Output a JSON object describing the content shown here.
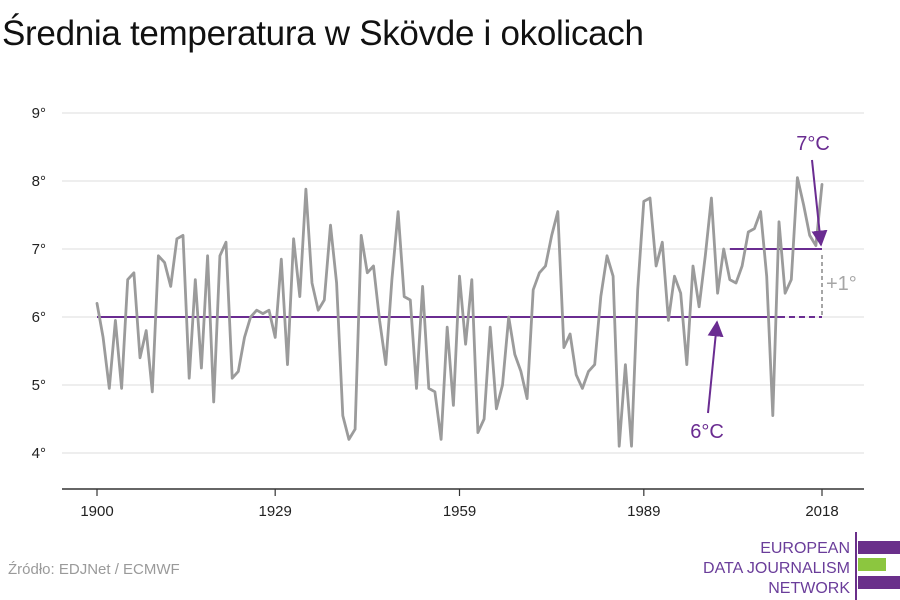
{
  "title": "Średnia temperatura w Skövde i okolicach",
  "source": "Źródło: EDJNet / ECMWF",
  "logo": {
    "lines": [
      "EUROPEAN",
      "DATA JOURNALISM",
      "NETWORK"
    ]
  },
  "colors": {
    "series": "#9b9b9b",
    "reference": "#6a2c91",
    "annotation_gray": "#a6a6a6",
    "grid": "#dcdcdc"
  },
  "chart_data": {
    "type": "line",
    "title": "Średnia temperatura w Skövde i okolicach",
    "xlabel": "",
    "ylabel": "",
    "xlim": [
      1900,
      2018
    ],
    "ylim": [
      4,
      9
    ],
    "x_ticks": [
      1900,
      1929,
      1959,
      1989,
      2018
    ],
    "x_tick_labels": [
      "1900",
      "1929",
      "1959",
      "1989",
      "2018"
    ],
    "y_ticks": [
      4,
      5,
      6,
      7,
      8,
      9
    ],
    "y_tick_labels": [
      "4°",
      "5°",
      "6°",
      "7°",
      "8°",
      "9°"
    ],
    "grid": true,
    "series": [
      {
        "x": [
          1900,
          1901,
          1902,
          1903,
          1904,
          1905,
          1906,
          1907,
          1908,
          1909,
          1910,
          1911,
          1912,
          1913,
          1914,
          1915,
          1916,
          1917,
          1918,
          1919,
          1920,
          1921,
          1922,
          1923,
          1924,
          1925,
          1926,
          1927,
          1928,
          1929,
          1930,
          1931,
          1932,
          1933,
          1934,
          1935,
          1936,
          1937,
          1938,
          1939,
          1940,
          1941,
          1942,
          1943,
          1944,
          1945,
          1946,
          1947,
          1948,
          1949,
          1950,
          1951,
          1952,
          1953,
          1954,
          1955,
          1956,
          1957,
          1958,
          1959,
          1960,
          1961,
          1962,
          1963,
          1964,
          1965,
          1966,
          1967,
          1968,
          1969,
          1970,
          1971,
          1972,
          1973,
          1974,
          1975,
          1976,
          1977,
          1978,
          1979,
          1980,
          1981,
          1982,
          1983,
          1984,
          1985,
          1986,
          1987,
          1988,
          1989,
          1990,
          1991,
          1992,
          1993,
          1994,
          1995,
          1996,
          1997,
          1998,
          1999,
          2000,
          2001,
          2002,
          2003,
          2004,
          2005,
          2006,
          2007,
          2008,
          2009,
          2010,
          2011,
          2012,
          2013,
          2014,
          2015,
          2016,
          2017,
          2018
        ],
        "values": [
          6.2,
          5.7,
          4.95,
          5.95,
          4.95,
          6.55,
          6.65,
          5.4,
          5.8,
          4.9,
          6.9,
          6.8,
          6.45,
          7.15,
          7.2,
          5.1,
          6.55,
          5.25,
          6.9,
          4.75,
          6.9,
          7.1,
          5.1,
          5.2,
          5.7,
          6.0,
          6.1,
          6.05,
          6.1,
          5.7,
          6.85,
          5.3,
          7.15,
          6.3,
          7.88,
          6.5,
          6.1,
          6.25,
          7.35,
          6.5,
          4.55,
          4.2,
          4.35,
          7.2,
          6.65,
          6.75,
          5.95,
          5.3,
          6.55,
          7.55,
          6.3,
          6.25,
          4.95,
          6.45,
          4.95,
          4.9,
          4.2,
          5.85,
          4.7,
          6.6,
          5.6,
          6.55,
          4.3,
          4.5,
          5.85,
          4.65,
          5.0,
          6.0,
          5.45,
          5.2,
          4.8,
          6.4,
          6.65,
          6.75,
          7.2,
          7.55,
          5.55,
          5.75,
          5.15,
          4.95,
          5.2,
          5.3,
          6.3,
          6.9,
          6.6,
          4.1,
          5.3,
          4.1,
          6.4,
          7.7,
          7.75,
          6.75,
          7.1,
          5.95,
          6.6,
          6.35,
          5.3,
          6.75,
          6.15,
          6.9,
          7.75,
          6.35,
          7.0,
          6.55,
          6.5,
          6.75,
          7.25,
          7.3,
          7.55,
          6.6,
          4.55,
          7.4,
          6.35,
          6.55,
          8.05,
          7.65,
          7.2,
          7.05,
          7.95
        ]
      }
    ],
    "reference_lines": [
      {
        "value": 6,
        "x_start": 1900,
        "x_end": 2011,
        "style": "solid"
      },
      {
        "value": 6,
        "x_start": 2011,
        "x_end": 2018,
        "style": "dashed"
      },
      {
        "value": 7,
        "x_start": 2003,
        "x_end": 2018,
        "style": "solid"
      }
    ],
    "annotations": [
      {
        "text": "7°C",
        "color": "purple"
      },
      {
        "text": "6°C",
        "color": "purple"
      },
      {
        "text": "+1°",
        "color": "gray"
      }
    ]
  }
}
